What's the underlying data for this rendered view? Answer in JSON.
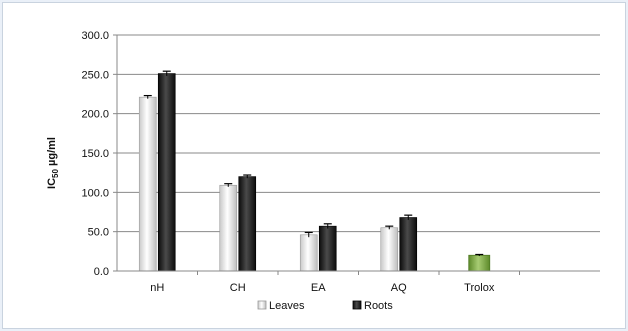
{
  "chart_data": {
    "type": "bar",
    "ylabel_main": "IC",
    "ylabel_sub": "50",
    "ylabel_unit": " µg/ml",
    "ylim": [
      0,
      300
    ],
    "yticks": [
      "0.0",
      "50.0",
      "100.0",
      "150.0",
      "200.0",
      "250.0",
      "300.0"
    ],
    "grid": true,
    "legend_position": "bottom",
    "categories": [
      "nH",
      "CH",
      "EA",
      "AQ",
      "Trolox"
    ],
    "series": [
      {
        "name": "Leaves",
        "values": [
          221,
          109,
          46,
          55,
          null
        ],
        "errors": [
          2,
          2,
          3,
          2,
          null
        ],
        "color": "#eeeeee"
      },
      {
        "name": "Roots",
        "values": [
          251,
          120,
          57,
          68,
          null
        ],
        "errors": [
          3,
          2,
          3,
          3,
          null
        ],
        "color": "#222222"
      }
    ],
    "reference": {
      "category": "Trolox",
      "value": 20,
      "error": 1,
      "color": "#77a03c"
    }
  }
}
